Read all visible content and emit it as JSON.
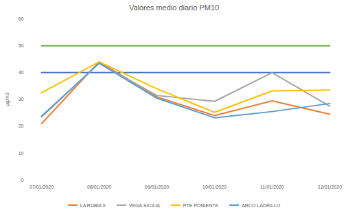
{
  "chart_data": {
    "type": "line",
    "title": "Valores medio diario PM10",
    "y_label": "µg/m3",
    "categories": [
      "07/01/2020",
      "08/01/2020",
      "09/01/2020",
      "10/01/2020",
      "11/01/2020",
      "12/01/2020"
    ],
    "series": [
      {
        "name": "LA RUBIA II",
        "color": "#ED7D31",
        "values": [
          21,
          44,
          31,
          24,
          29.5,
          24.5
        ]
      },
      {
        "name": "VEGA SICILIA",
        "color": "#A5A5A5",
        "values": [
          23.5,
          43.5,
          31.5,
          29.3,
          40,
          27.5
        ]
      },
      {
        "name": "PTE PONIENTE",
        "color": "#FFC000",
        "values": [
          32.5,
          44,
          34,
          25.2,
          33.2,
          33.5
        ]
      },
      {
        "name": "ARCO LADRILLO",
        "color": "#5B9BD5",
        "values": [
          23.8,
          43.5,
          30.5,
          23.2,
          25.5,
          28.5
        ]
      },
      {
        "color": "#70AD47",
        "values": [
          50,
          50,
          50,
          50,
          50,
          50
        ]
      },
      {
        "color": "#4472C4",
        "values": [
          40,
          40,
          40,
          40,
          40,
          40
        ]
      }
    ],
    "ylim": [
      0,
      60
    ],
    "yticks": [
      0,
      10,
      20,
      30,
      40,
      50,
      60
    ],
    "grid": false,
    "legend": "bottom"
  }
}
